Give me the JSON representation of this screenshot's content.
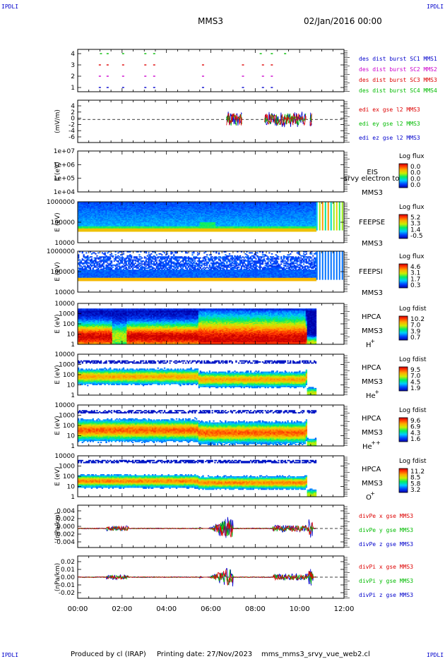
{
  "header": {
    "corner_label": "IPDLI",
    "spacecraft": "MMS3",
    "date_time": "02/Jan/2016 00:00"
  },
  "footer": {
    "produced_by": "Produced by cl (IRAP)",
    "printing_date": "Printing date: 27/Nov/2023",
    "file_name": "mms_mms3_srvy_vue_web2.cl"
  },
  "colors": {
    "burst_sc1": "#0000cc",
    "burst_sc2": "#cc00cc",
    "burst_sc3": "#dd0000",
    "burst_sc4": "#00bb00",
    "x_component": "#dd0000",
    "y_component": "#00bb00",
    "z_component": "#0000cc"
  },
  "chart_data": [
    {
      "type": "scatter",
      "name": "burst",
      "yticks": [
        "4",
        "3",
        "2",
        "1"
      ],
      "legend": [
        {
          "text": "des dist burst SC1 MMS1",
          "color": "burst_sc1"
        },
        {
          "text": "des dist burst SC2 MMS2",
          "color": "burst_sc2"
        },
        {
          "text": "des dist burst SC3 MMS3",
          "color": "burst_sc3"
        },
        {
          "text": "des dist burst SC4 MMS4",
          "color": "burst_sc4"
        }
      ],
      "marks": [
        {
          "level": 4,
          "t": [
            1.0,
            1.3,
            2.0,
            3.0,
            3.4,
            8.2,
            8.7,
            9.3
          ]
        },
        {
          "level": 3,
          "t": [
            0.95,
            1.3,
            2.0,
            3.0,
            3.4,
            5.6,
            7.4,
            8.3,
            8.7
          ]
        },
        {
          "level": 2,
          "t": [
            0.95,
            1.3,
            2.0,
            3.0,
            3.4,
            5.6,
            7.4,
            8.3,
            8.7
          ]
        },
        {
          "level": 1,
          "t": [
            0.95,
            1.3,
            2.0,
            3.0,
            3.4,
            5.6,
            7.4,
            8.3,
            8.7
          ]
        }
      ]
    },
    {
      "type": "line",
      "name": "edi",
      "ylabel": "(mV/m)",
      "yticks": [
        "4",
        "2",
        "0",
        "-2",
        "-4",
        "-6"
      ],
      "ylim": [
        -6,
        5
      ],
      "legend": [
        {
          "text": "edi ex gse l2 MMS3",
          "color": "x_component"
        },
        {
          "text": "edi ey gse l2 MMS3",
          "color": "y_component"
        },
        {
          "text": "edi ez gse l2 MMS3",
          "color": "z_component"
        }
      ]
    },
    {
      "type": "heatmap",
      "name": "eis",
      "ylabel": "E (eV)",
      "yticks": [
        "1e+07",
        "1e+06",
        "1e+05",
        "1e+04"
      ],
      "instrument": "EIS",
      "product": "srvy electron to",
      "spacecraft": "MMS3",
      "cbar_title": "Log flux",
      "cbar_ticks": [
        "0.0",
        "0.0",
        "0.0",
        "0.0"
      ]
    },
    {
      "type": "heatmap",
      "name": "feepse",
      "ylabel": "E (eV)",
      "yticks": [
        "1000000",
        "100000",
        "10000"
      ],
      "instrument": "FEEPSE",
      "spacecraft": "MMS3",
      "cbar_title": "Log flux",
      "cbar_ticks": [
        "5.2",
        "3.3",
        "1.4",
        "-0.5"
      ]
    },
    {
      "type": "heatmap",
      "name": "feepsi",
      "ylabel": "E (eV)",
      "yticks": [
        "1000000",
        "100000",
        "10000"
      ],
      "instrument": "FEEPSI",
      "spacecraft": "MMS3",
      "cbar_title": "Log flux",
      "cbar_ticks": [
        "4.6",
        "3.1",
        "1.7",
        "0.3"
      ]
    },
    {
      "type": "heatmap",
      "name": "hpca_h",
      "ylabel": "E (eV)",
      "yticks": [
        "10000",
        "1000",
        "100",
        "10",
        "1"
      ],
      "instrument": "HPCA",
      "spacecraft": "MMS3",
      "species": "H",
      "charge": "+",
      "cbar_title": "Log fdist",
      "cbar_ticks": [
        "10.2",
        "7.0",
        "3.9",
        "0.7"
      ]
    },
    {
      "type": "heatmap",
      "name": "hpca_he1",
      "ylabel": "E (eV)",
      "yticks": [
        "10000",
        "1000",
        "100",
        "10",
        "1"
      ],
      "instrument": "HPCA",
      "spacecraft": "MMS3",
      "species": "He",
      "charge": "+",
      "cbar_title": "Log fdist",
      "cbar_ticks": [
        "9.5",
        "7.0",
        "4.5",
        "1.9"
      ]
    },
    {
      "type": "heatmap",
      "name": "hpca_he2",
      "ylabel": "E (eV)",
      "yticks": [
        "10000",
        "1000",
        "100",
        "10",
        "1"
      ],
      "instrument": "HPCA",
      "spacecraft": "MMS3",
      "species": "He",
      "charge": "++",
      "cbar_title": "Log fdist",
      "cbar_ticks": [
        "9.6",
        "6.9",
        "4.3",
        "1.6"
      ]
    },
    {
      "type": "heatmap",
      "name": "hpca_o",
      "ylabel": "E (eV)",
      "yticks": [
        "10000",
        "1000",
        "100",
        "10",
        "1"
      ],
      "instrument": "HPCA",
      "spacecraft": "MMS3",
      "species": "O",
      "charge": "+",
      "cbar_title": "Log fdist",
      "cbar_ticks": [
        "11.2",
        "8.5",
        "5.8",
        "3.2"
      ]
    },
    {
      "type": "line",
      "name": "divpe",
      "ylabel": "(nPa/km)",
      "yticks": [
        "0.004",
        "0.002",
        "0.000",
        "-0.002",
        "-0.004"
      ],
      "ylim": [
        -0.0045,
        0.0055
      ],
      "legend": [
        {
          "text": "divPe x gse MMS3",
          "color": "x_component"
        },
        {
          "text": "divPe y gse MMS3",
          "color": "y_component"
        },
        {
          "text": "divPe z gse MMS3",
          "color": "z_component"
        }
      ]
    },
    {
      "type": "line",
      "name": "divpi",
      "ylabel": "(nPa/km)",
      "yticks": [
        "0.02",
        "0.01",
        "0.00",
        "-0.01",
        "-0.02"
      ],
      "ylim": [
        -0.022,
        0.022
      ],
      "legend": [
        {
          "text": "divPi x gse MMS3",
          "color": "x_component"
        },
        {
          "text": "divPi y gse MMS3",
          "color": "y_component"
        },
        {
          "text": "divPi z gse MMS3",
          "color": "z_component"
        }
      ]
    }
  ],
  "xaxis": {
    "ticks": [
      "00:00",
      "02:00",
      "04:00",
      "06:00",
      "08:00",
      "10:00",
      "12:00"
    ],
    "range_hours": [
      0,
      12
    ],
    "data_end_hour": 10.75
  }
}
